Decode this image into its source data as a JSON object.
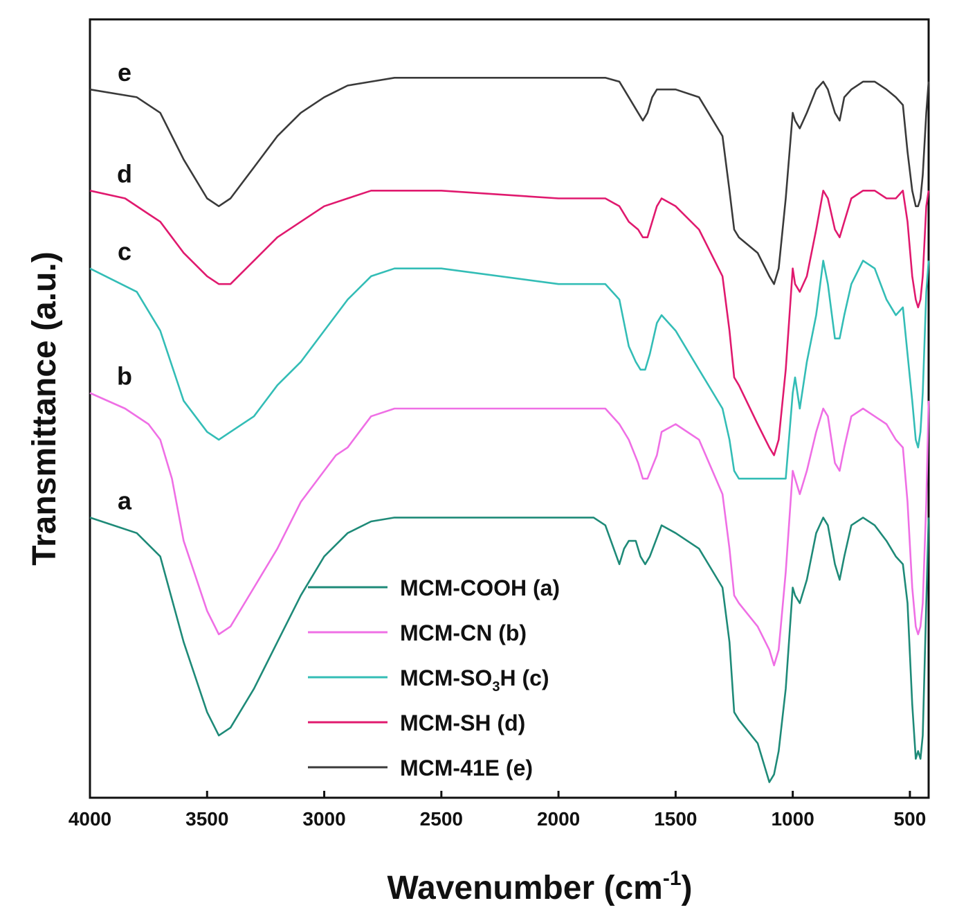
{
  "chart_data": {
    "type": "line",
    "title": "",
    "xlabel": "Wavenumber (cm",
    "xlabel_sup": "-1",
    "xlabel_close": ")",
    "ylabel": "Transmittance (a.u.)",
    "xlim": [
      4000,
      420
    ],
    "ylim": [
      0,
      1
    ],
    "x_reversed": true,
    "x_ticks": [
      4000,
      3500,
      3000,
      2500,
      2000,
      1500,
      1000,
      500
    ],
    "grid": false,
    "legend_position": "center-bottom",
    "legend_label_c_prefix": "MCM-SO",
    "legend_label_c_sub": "3",
    "legend_label_c_suffix": "H (c)",
    "series": [
      {
        "name": "MCM-COOH (a)",
        "letter": "a",
        "color": "#1e8a78",
        "x": [
          4000,
          3800,
          3700,
          3600,
          3500,
          3450,
          3400,
          3300,
          3200,
          3100,
          3000,
          2900,
          2800,
          2700,
          2500,
          2000,
          1850,
          1800,
          1740,
          1720,
          1700,
          1670,
          1650,
          1630,
          1610,
          1560,
          1500,
          1400,
          1300,
          1270,
          1250,
          1230,
          1150,
          1100,
          1080,
          1060,
          1030,
          1000,
          990,
          970,
          940,
          900,
          870,
          850,
          820,
          800,
          780,
          750,
          700,
          650,
          600,
          560,
          530,
          510,
          490,
          475,
          465,
          455,
          445,
          430,
          420
        ],
        "y": [
          0.36,
          0.34,
          0.31,
          0.2,
          0.11,
          0.08,
          0.09,
          0.14,
          0.2,
          0.26,
          0.31,
          0.34,
          0.355,
          0.36,
          0.36,
          0.36,
          0.36,
          0.35,
          0.3,
          0.32,
          0.33,
          0.33,
          0.31,
          0.3,
          0.31,
          0.35,
          0.34,
          0.32,
          0.27,
          0.2,
          0.11,
          0.1,
          0.07,
          0.02,
          0.03,
          0.06,
          0.14,
          0.27,
          0.26,
          0.25,
          0.28,
          0.34,
          0.36,
          0.35,
          0.3,
          0.28,
          0.31,
          0.35,
          0.36,
          0.35,
          0.33,
          0.31,
          0.3,
          0.25,
          0.12,
          0.05,
          0.06,
          0.05,
          0.08,
          0.25,
          0.36
        ]
      },
      {
        "name": "MCM-CN (b)",
        "letter": "b",
        "color": "#ef6fe5",
        "x": [
          4000,
          3850,
          3750,
          3700,
          3650,
          3600,
          3500,
          3450,
          3400,
          3300,
          3200,
          3100,
          3000,
          2950,
          2900,
          2850,
          2800,
          2700,
          2500,
          2000,
          1800,
          1740,
          1700,
          1660,
          1640,
          1620,
          1580,
          1560,
          1500,
          1400,
          1300,
          1270,
          1250,
          1230,
          1150,
          1100,
          1080,
          1060,
          1030,
          1000,
          990,
          970,
          940,
          900,
          870,
          850,
          820,
          800,
          780,
          750,
          700,
          650,
          600,
          560,
          530,
          510,
          490,
          475,
          465,
          455,
          445,
          430,
          420
        ],
        "y": [
          0.52,
          0.5,
          0.48,
          0.46,
          0.41,
          0.33,
          0.24,
          0.21,
          0.22,
          0.27,
          0.32,
          0.38,
          0.42,
          0.44,
          0.45,
          0.47,
          0.49,
          0.5,
          0.5,
          0.5,
          0.5,
          0.48,
          0.46,
          0.43,
          0.41,
          0.41,
          0.44,
          0.47,
          0.48,
          0.46,
          0.39,
          0.32,
          0.26,
          0.25,
          0.22,
          0.19,
          0.17,
          0.19,
          0.29,
          0.42,
          0.41,
          0.39,
          0.42,
          0.47,
          0.5,
          0.49,
          0.43,
          0.42,
          0.45,
          0.49,
          0.5,
          0.49,
          0.48,
          0.46,
          0.45,
          0.38,
          0.27,
          0.22,
          0.21,
          0.22,
          0.25,
          0.38,
          0.51
        ]
      },
      {
        "name": "MCM-SO3H (c)",
        "letter": "c",
        "color": "#33bdb6",
        "x": [
          4000,
          3800,
          3700,
          3600,
          3500,
          3450,
          3400,
          3300,
          3200,
          3100,
          3000,
          2900,
          2800,
          2700,
          2500,
          2000,
          1800,
          1740,
          1700,
          1670,
          1650,
          1630,
          1610,
          1580,
          1560,
          1500,
          1400,
          1300,
          1270,
          1250,
          1230,
          1150,
          1100,
          1050,
          1030,
          1000,
          990,
          970,
          940,
          900,
          870,
          850,
          820,
          800,
          780,
          750,
          700,
          650,
          600,
          560,
          530,
          510,
          490,
          475,
          465,
          455,
          445,
          430,
          420
        ],
        "y": [
          0.68,
          0.65,
          0.6,
          0.51,
          0.47,
          0.46,
          0.47,
          0.49,
          0.53,
          0.56,
          0.6,
          0.64,
          0.67,
          0.68,
          0.68,
          0.66,
          0.66,
          0.64,
          0.58,
          0.56,
          0.55,
          0.55,
          0.57,
          0.61,
          0.62,
          0.6,
          0.55,
          0.5,
          0.46,
          0.42,
          0.41,
          0.41,
          0.41,
          0.41,
          0.41,
          0.52,
          0.54,
          0.5,
          0.56,
          0.62,
          0.69,
          0.66,
          0.59,
          0.59,
          0.62,
          0.66,
          0.69,
          0.68,
          0.64,
          0.62,
          0.63,
          0.57,
          0.51,
          0.46,
          0.45,
          0.47,
          0.52,
          0.65,
          0.69
        ]
      },
      {
        "name": "MCM-SH (d)",
        "letter": "d",
        "color": "#e0196e",
        "x": [
          4000,
          3850,
          3750,
          3700,
          3650,
          3600,
          3500,
          3450,
          3400,
          3300,
          3200,
          3100,
          3000,
          2900,
          2800,
          2700,
          2500,
          2000,
          1800,
          1740,
          1700,
          1660,
          1640,
          1620,
          1600,
          1580,
          1560,
          1500,
          1400,
          1300,
          1270,
          1250,
          1230,
          1150,
          1100,
          1080,
          1060,
          1030,
          1000,
          990,
          970,
          940,
          900,
          870,
          850,
          820,
          800,
          780,
          750,
          700,
          650,
          600,
          560,
          530,
          510,
          490,
          475,
          465,
          455,
          445,
          430,
          420
        ],
        "y": [
          0.78,
          0.77,
          0.75,
          0.74,
          0.72,
          0.7,
          0.67,
          0.66,
          0.66,
          0.69,
          0.72,
          0.74,
          0.76,
          0.77,
          0.78,
          0.78,
          0.78,
          0.77,
          0.77,
          0.76,
          0.74,
          0.73,
          0.72,
          0.72,
          0.74,
          0.76,
          0.77,
          0.76,
          0.73,
          0.67,
          0.6,
          0.54,
          0.53,
          0.48,
          0.45,
          0.44,
          0.46,
          0.55,
          0.68,
          0.66,
          0.65,
          0.67,
          0.73,
          0.78,
          0.77,
          0.73,
          0.72,
          0.74,
          0.77,
          0.78,
          0.78,
          0.77,
          0.77,
          0.78,
          0.74,
          0.67,
          0.64,
          0.63,
          0.64,
          0.67,
          0.76,
          0.78
        ]
      },
      {
        "name": "MCM-41E (e)",
        "letter": "e",
        "color": "#3a3a3a",
        "x": [
          4000,
          3800,
          3700,
          3600,
          3500,
          3450,
          3400,
          3300,
          3200,
          3100,
          3000,
          2900,
          2800,
          2700,
          2500,
          2000,
          1800,
          1740,
          1700,
          1660,
          1640,
          1620,
          1600,
          1580,
          1560,
          1500,
          1400,
          1300,
          1270,
          1250,
          1230,
          1150,
          1100,
          1080,
          1060,
          1030,
          1000,
          990,
          970,
          940,
          900,
          870,
          850,
          820,
          800,
          780,
          750,
          700,
          650,
          600,
          560,
          530,
          510,
          490,
          475,
          465,
          455,
          445,
          430,
          420
        ],
        "y": [
          0.91,
          0.9,
          0.88,
          0.82,
          0.77,
          0.76,
          0.77,
          0.81,
          0.85,
          0.88,
          0.9,
          0.915,
          0.92,
          0.925,
          0.925,
          0.925,
          0.925,
          0.92,
          0.9,
          0.88,
          0.87,
          0.88,
          0.9,
          0.91,
          0.91,
          0.91,
          0.9,
          0.85,
          0.78,
          0.73,
          0.72,
          0.7,
          0.67,
          0.66,
          0.68,
          0.77,
          0.88,
          0.87,
          0.86,
          0.88,
          0.91,
          0.92,
          0.91,
          0.88,
          0.87,
          0.9,
          0.91,
          0.92,
          0.92,
          0.91,
          0.9,
          0.89,
          0.83,
          0.78,
          0.76,
          0.76,
          0.77,
          0.8,
          0.88,
          0.92
        ]
      }
    ]
  }
}
